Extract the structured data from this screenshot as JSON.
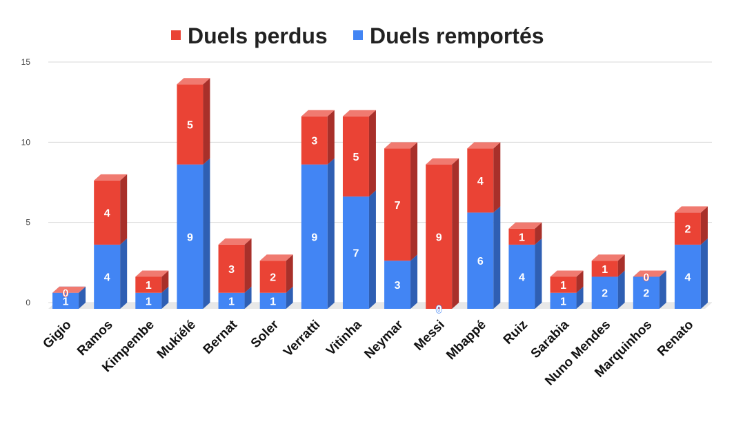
{
  "chart_data": {
    "type": "bar",
    "stacked": true,
    "style": "3d",
    "categories": [
      "Gigio",
      "Ramos",
      "Kimpembe",
      "Mukiélé",
      "Bernat",
      "Soler",
      "Verratti",
      "Vitinha",
      "Neymar",
      "Messi",
      "Mbappé",
      "Ruiz",
      "Sarabia",
      "Nuno Mendes",
      "Marquinhos",
      "Renato"
    ],
    "series": [
      {
        "name": "Duels remportés",
        "color": "#4285f4",
        "side_color": "#2f5fb3",
        "top_color": "#6a9ff7",
        "values": [
          1,
          4,
          1,
          9,
          1,
          1,
          9,
          7,
          3,
          0,
          6,
          4,
          1,
          2,
          2,
          4
        ]
      },
      {
        "name": "Duels perdus",
        "color": "#ea4335",
        "side_color": "#a8302a",
        "top_color": "#f07a70",
        "values": [
          0,
          4,
          1,
          5,
          3,
          2,
          3,
          5,
          7,
          9,
          4,
          1,
          1,
          1,
          0,
          2
        ]
      }
    ],
    "legend_order": [
      "Duels perdus",
      "Duels remportés"
    ],
    "legend_position": "top",
    "ylim": [
      0,
      15
    ],
    "yticks": [
      0,
      5,
      10,
      15
    ],
    "grid": true
  }
}
